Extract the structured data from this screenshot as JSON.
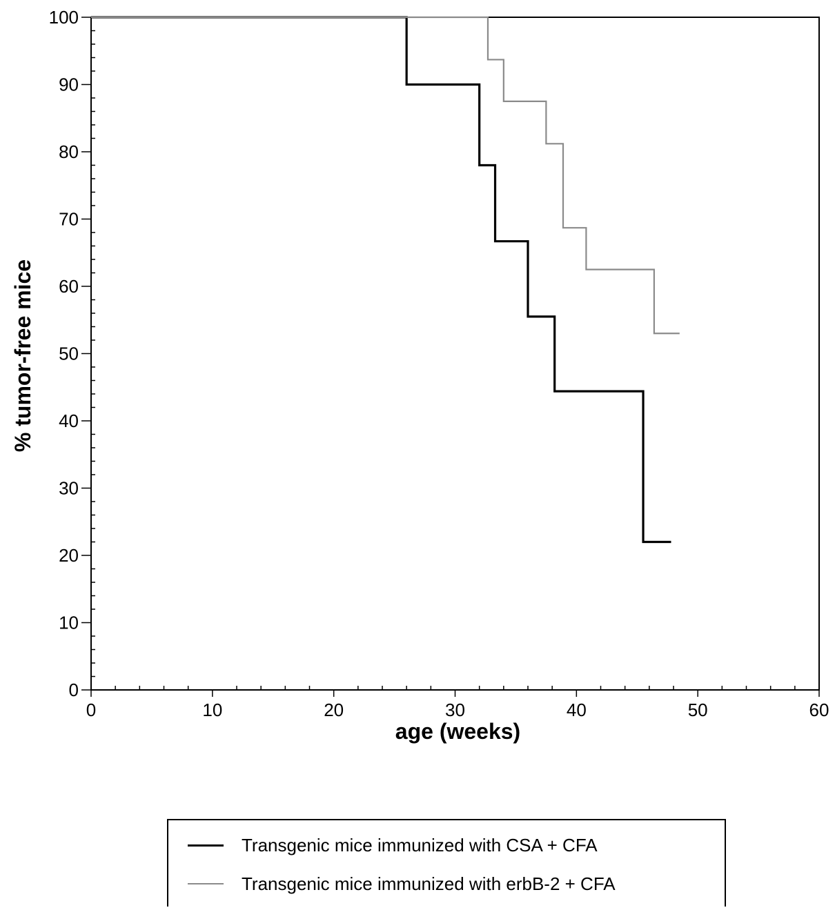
{
  "chart_data": {
    "type": "line",
    "xlabel": "age (weeks)",
    "ylabel": "% tumor-free mice",
    "xlim": [
      0,
      60
    ],
    "ylim": [
      0,
      100
    ],
    "xticks": [
      0,
      10,
      20,
      30,
      40,
      50,
      60
    ],
    "yticks": [
      0,
      10,
      20,
      30,
      40,
      50,
      60,
      70,
      80,
      90,
      100
    ],
    "x_tick_labels": [
      "0",
      "10",
      "20",
      "30",
      "40",
      "50",
      "60"
    ],
    "y_tick_labels": [
      "0",
      "10",
      "20",
      "30",
      "40",
      "50",
      "60",
      "70",
      "80",
      "90",
      "100"
    ],
    "grid": false,
    "legend_position": "bottom",
    "series": [
      {
        "name": "Transgenic mice immunized with CSA + CFA",
        "color": "#000000",
        "style": "solid-thick",
        "step": true,
        "x": [
          0,
          26,
          32,
          33.3,
          36,
          38.2,
          45.5,
          47.8
        ],
        "y": [
          100,
          90,
          78,
          66.7,
          55.5,
          44.4,
          22,
          22
        ]
      },
      {
        "name": "Transgenic mice immunized with erbB-2 + CFA",
        "color": "#8a8a8a",
        "style": "solid-thin",
        "step": true,
        "x": [
          0,
          32.7,
          34,
          37.5,
          38.9,
          40.8,
          46.4,
          48.5
        ],
        "y": [
          100,
          93.7,
          87.5,
          81.2,
          68.7,
          62.5,
          53,
          53
        ]
      }
    ]
  }
}
